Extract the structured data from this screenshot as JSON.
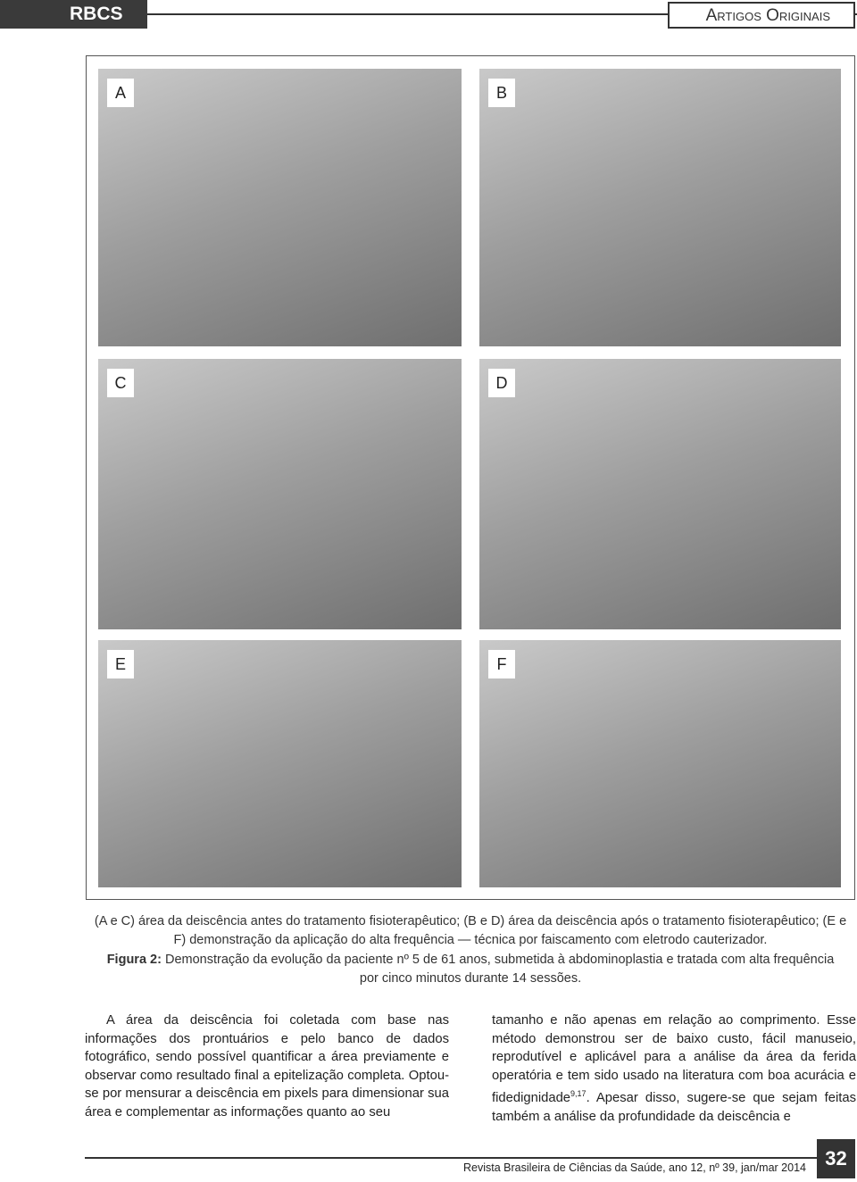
{
  "header": {
    "journal": "RBCS",
    "section": "Artigos Originais"
  },
  "figure": {
    "panels": [
      "A",
      "B",
      "C",
      "D",
      "E",
      "F"
    ],
    "note": "(A e C) área da deiscência antes do tratamento fisioterapêutico; (B e D) área da deiscência após o tratamento fisioterapêutico; (E e F) demonstração da aplicação do alta frequência — técnica por faiscamento com eletrodo cauterizador.",
    "caption_label": "Figura 2:",
    "caption_text": "Demonstração da evolução da paciente nº 5 de 61 anos, submetida à abdominoplastia e tratada com alta frequência por cinco minutos durante 14 sessões."
  },
  "body": {
    "left": "A área da deiscência foi coletada com base nas informações dos prontuários e pelo banco de dados fotográfico, sendo possível quantificar a área previamente e observar como resultado final a epitelização completa. Optou-se por mensurar a deiscência em pixels para dimensionar sua área e complementar as informações quanto ao seu",
    "right_start": "tamanho e não apenas em relação ao comprimento. Esse método demonstrou ser de baixo custo, fácil manuseio, reprodutível e aplicável para a análise da área da ferida operatória e tem sido usado na literatura com boa acurácia e fidedignidade",
    "right_ref": "9,17",
    "right_end": ". Apesar disso, sugere-se que sejam feitas também a análise da profundidade da deiscência e"
  },
  "footer": {
    "citation": "Revista Brasileira de Ciências da Saúde, ano 12, nº 39, jan/mar 2014",
    "page": "32"
  }
}
